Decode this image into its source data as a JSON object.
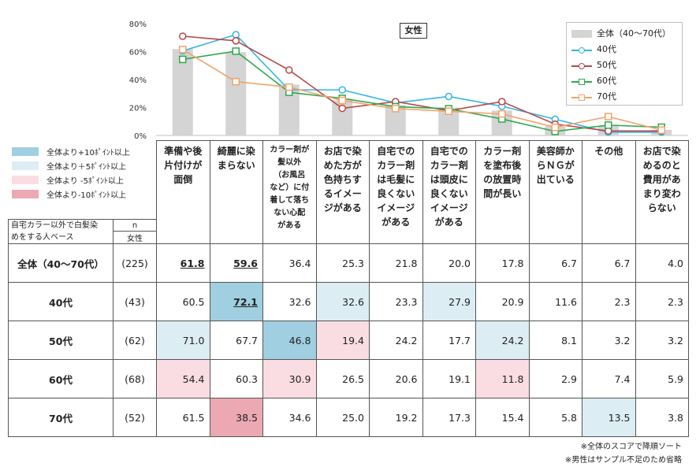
{
  "chart_data": {
    "type": "bar+line",
    "title": "女性",
    "ylim": [
      0,
      80
    ],
    "y_ticks": [
      "0%",
      "20%",
      "40%",
      "60%",
      "80%"
    ],
    "categories": [
      "準備や後片付けが面倒",
      "綺麗に染まらない",
      "カラー剤が髪以外（お風呂など）に付着して落ちない心配がある",
      "お店で染めた方が色持ちするイメージがある",
      "自宅でのカラー剤は毛髪に良くないイメージがある",
      "自宅でのカラー剤は頭皮に良くないイメージがある",
      "カラー剤を塗布後の放置時間が長い",
      "美容師からＮＧが出ている",
      "その他",
      "お店で染めるのと費用があまり変わらない"
    ],
    "series": [
      {
        "name": "全体（40～70代）",
        "kind": "bar",
        "color": "#d4d4d4",
        "values": [
          61.8,
          59.6,
          36.4,
          25.3,
          21.8,
          20.0,
          17.8,
          6.7,
          6.7,
          4.0
        ]
      },
      {
        "name": "40代",
        "kind": "line",
        "color": "#33b5e5",
        "values": [
          60.5,
          72.1,
          32.6,
          32.6,
          23.3,
          27.9,
          20.9,
          11.6,
          2.3,
          2.3
        ]
      },
      {
        "name": "50代",
        "kind": "line",
        "color": "#b9474a",
        "values": [
          71.0,
          67.7,
          46.8,
          19.4,
          24.2,
          17.7,
          24.2,
          8.1,
          3.2,
          3.2
        ]
      },
      {
        "name": "60代",
        "kind": "line",
        "color": "#2fa84f",
        "values": [
          54.4,
          60.3,
          30.9,
          26.5,
          20.6,
          19.1,
          11.8,
          2.9,
          7.4,
          5.9
        ]
      },
      {
        "name": "70代",
        "kind": "line",
        "color": "#f2a36b",
        "values": [
          61.5,
          38.5,
          34.6,
          25.0,
          19.2,
          17.3,
          15.4,
          5.8,
          13.5,
          3.8
        ]
      }
    ]
  },
  "table": {
    "header_lines": [
      [
        "準備や後",
        "片付けが",
        "面倒"
      ],
      [
        "綺麗に染",
        "まらない"
      ],
      [
        "カラー剤が",
        "髪以外",
        "（お風呂",
        "など）に付",
        "着して落ち",
        "ない心配",
        "がある"
      ],
      [
        "お店で染",
        "めた方が",
        "色持ちす",
        "るイメー",
        "ジがある"
      ],
      [
        "自宅での",
        "カラー剤",
        "は毛髪に",
        "良くない",
        "イメージ",
        "がある"
      ],
      [
        "自宅での",
        "カラー剤",
        "は頭皮に",
        "良くない",
        "イメージ",
        "がある"
      ],
      [
        "カラー剤",
        "を塗布後",
        "の放置時",
        "間が長い"
      ],
      [
        "美容師か",
        "らＮＧが",
        "出ている"
      ],
      [
        "その他"
      ],
      [
        "お店で染",
        "めるのと",
        "費用があ",
        "まり変わ",
        "らない"
      ]
    ],
    "base_label_line1": "自宅カラー以外で白髪染",
    "base_label_line2": "めをする人ベース",
    "base_underline": "以外",
    "n_label": "n",
    "n_sub": "女性",
    "rows": [
      {
        "label": "全体（40～70代）",
        "n": "(225)",
        "values": [
          "61.8",
          "59.6",
          "36.4",
          "25.3",
          "21.8",
          "20.0",
          "17.8",
          "6.7",
          "6.7",
          "4.0"
        ],
        "bold": [
          0,
          1
        ]
      },
      {
        "label": "40代",
        "n": "(43)",
        "values": [
          "60.5",
          "72.1",
          "32.6",
          "32.6",
          "23.3",
          "27.9",
          "20.9",
          "11.6",
          "2.3",
          "2.3"
        ],
        "bold": [
          1
        ]
      },
      {
        "label": "50代",
        "n": "(62)",
        "values": [
          "71.0",
          "67.7",
          "46.8",
          "19.4",
          "24.2",
          "17.7",
          "24.2",
          "8.1",
          "3.2",
          "3.2"
        ],
        "bold": []
      },
      {
        "label": "60代",
        "n": "(68)",
        "values": [
          "54.4",
          "60.3",
          "30.9",
          "26.5",
          "20.6",
          "19.1",
          "11.8",
          "2.9",
          "7.4",
          "5.9"
        ],
        "bold": []
      },
      {
        "label": "70代",
        "n": "(52)",
        "values": [
          "61.5",
          "38.5",
          "34.6",
          "25.0",
          "19.2",
          "17.3",
          "15.4",
          "5.8",
          "13.5",
          "3.8"
        ],
        "bold": []
      }
    ],
    "highlights": {
      "p10": [
        [
          1,
          1
        ],
        [
          2,
          2
        ]
      ],
      "p5": [
        [
          1,
          3
        ],
        [
          1,
          5
        ],
        [
          2,
          0
        ],
        [
          2,
          6
        ],
        [
          4,
          8
        ]
      ],
      "m5": [
        [
          2,
          3
        ],
        [
          3,
          0
        ],
        [
          3,
          2
        ],
        [
          3,
          6
        ]
      ],
      "m10": [
        [
          4,
          1
        ]
      ]
    }
  },
  "key_legend": [
    {
      "label": "全体より+10ﾎﾟｲﾝﾄ以上",
      "color": "#9fcfe0"
    },
    {
      "label": "全体より＋5ﾎﾟｲﾝﾄ以上",
      "color": "#dcedf3"
    },
    {
      "label": "全体より -5ﾎﾟｲﾝﾄ以上",
      "color": "#fadde3"
    },
    {
      "label": "全体より-10ﾎﾟｲﾝﾄ以上",
      "color": "#eca8b3"
    }
  ],
  "notes": {
    "note1": "※全体のスコアで降順ソート",
    "note2": "※男性はサンプル不足のため省略"
  }
}
